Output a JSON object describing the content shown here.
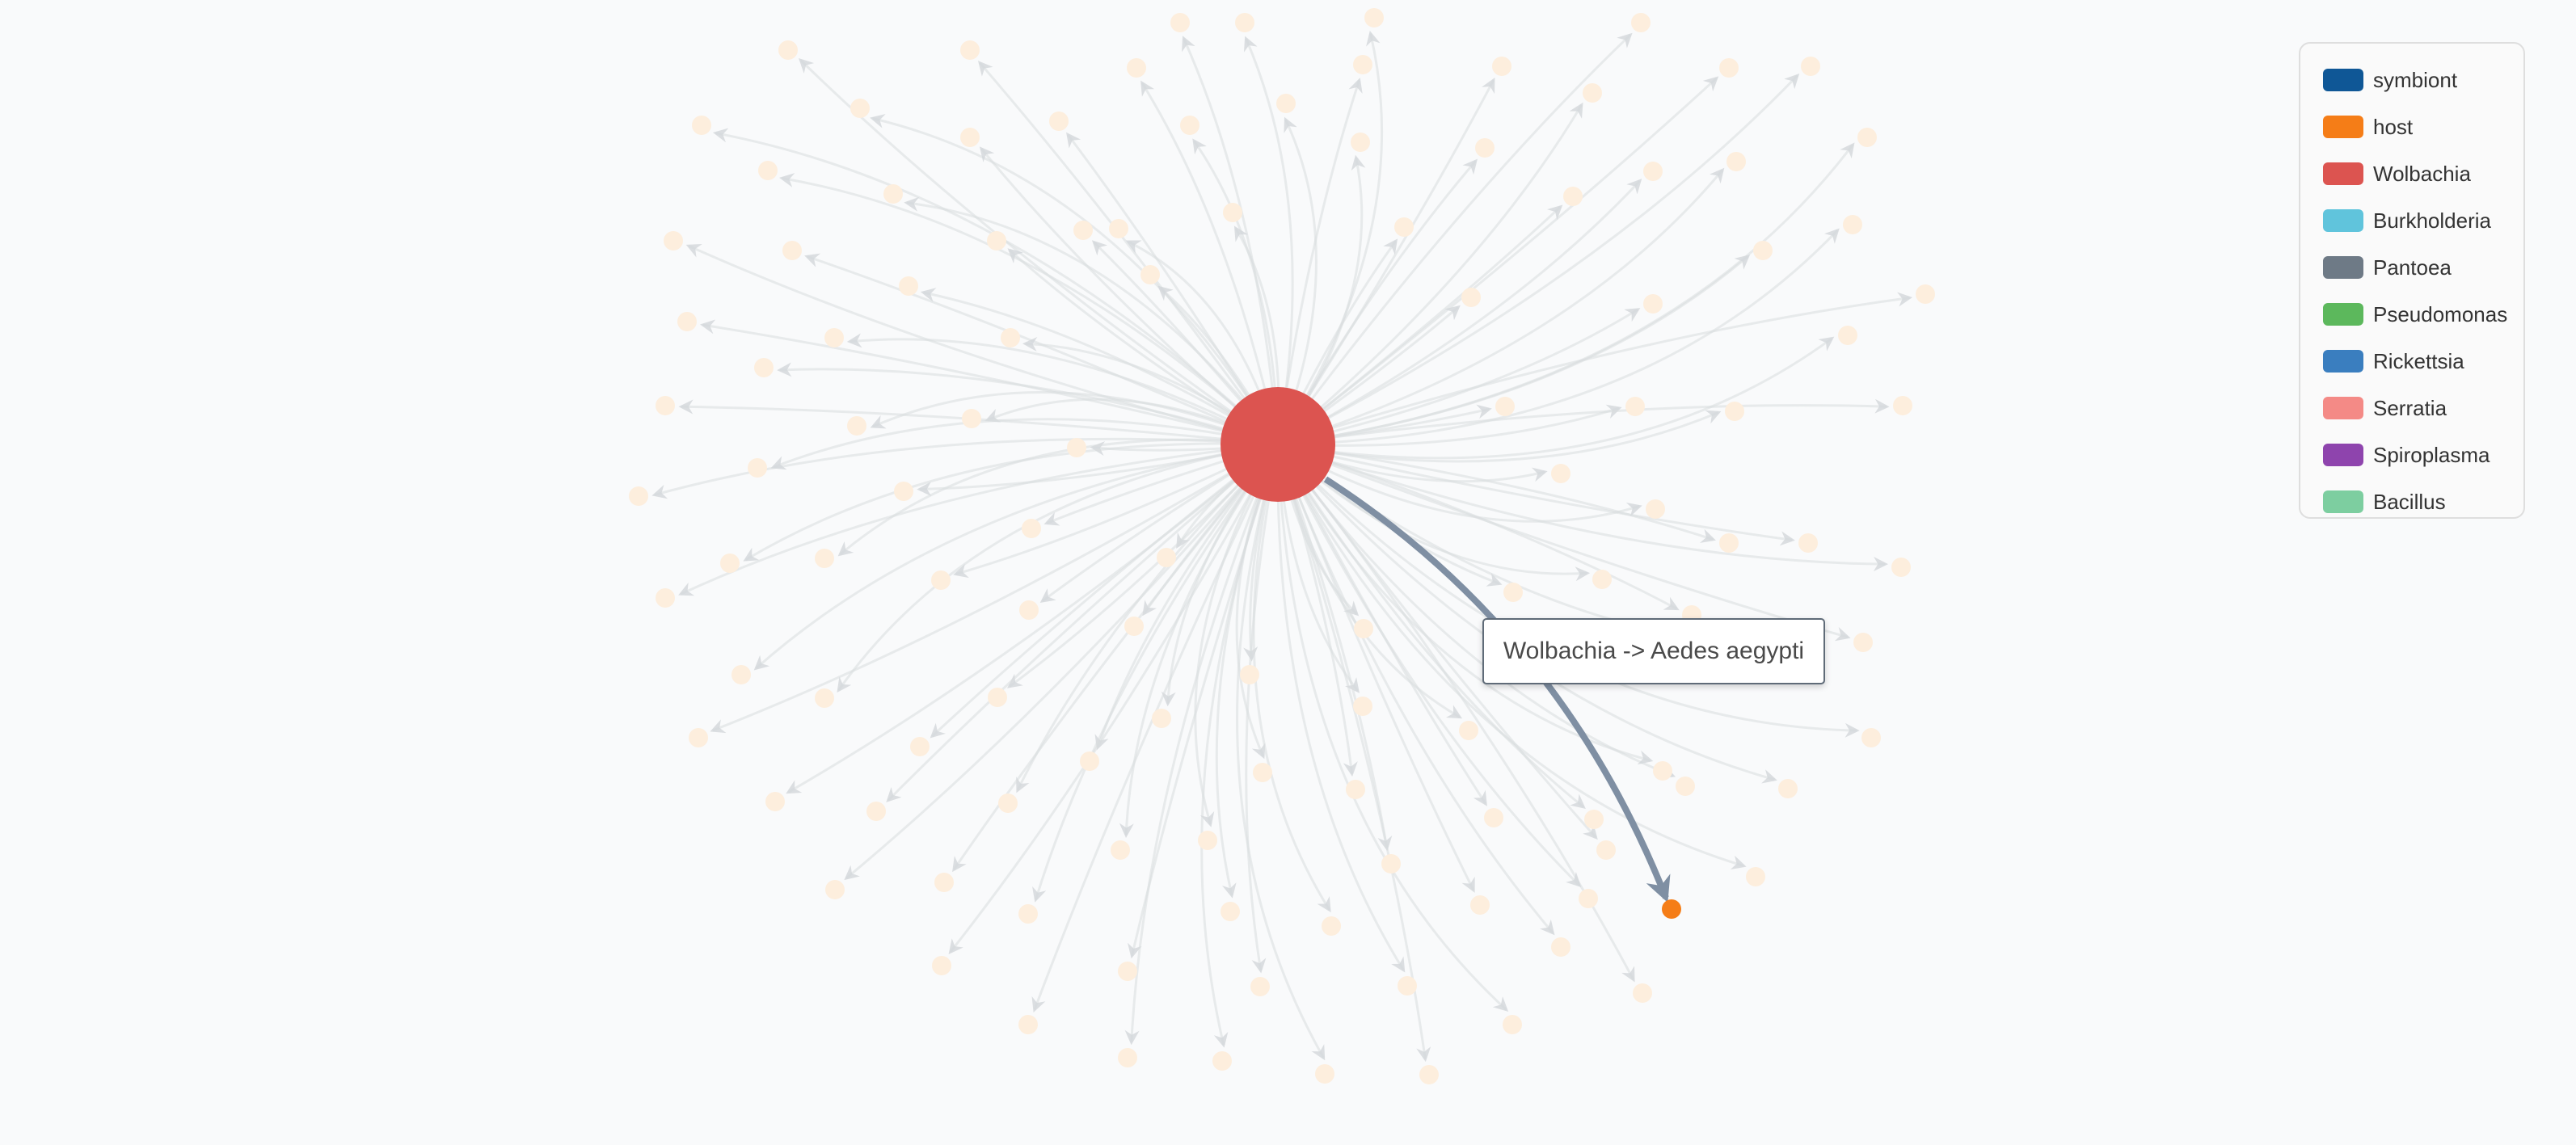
{
  "colors": {
    "background": "#f9fafb",
    "faded_host": "#fdeedd",
    "faded_edge": "#d9dcdf",
    "active_edge": "#7f8fa3",
    "active_host": "#f57d17",
    "center_node": "#dc5450"
  },
  "legend": {
    "items": [
      {
        "label": "symbiont",
        "color": "#0f5796"
      },
      {
        "label": "host",
        "color": "#f57d17"
      },
      {
        "label": "Wolbachia",
        "color": "#dc5450"
      },
      {
        "label": "Burkholderia",
        "color": "#60c4dc"
      },
      {
        "label": "Pantoea",
        "color": "#6e7a86"
      },
      {
        "label": "Pseudomonas",
        "color": "#5cb85c"
      },
      {
        "label": "Rickettsia",
        "color": "#3a7ebf"
      },
      {
        "label": "Serratia",
        "color": "#f48a86"
      },
      {
        "label": "Spiroplasma",
        "color": "#8e44ad"
      },
      {
        "label": "Bacillus",
        "color": "#7dcea0"
      }
    ]
  },
  "tooltip": {
    "text": "Wolbachia -> Aedes aegypti"
  }
}
